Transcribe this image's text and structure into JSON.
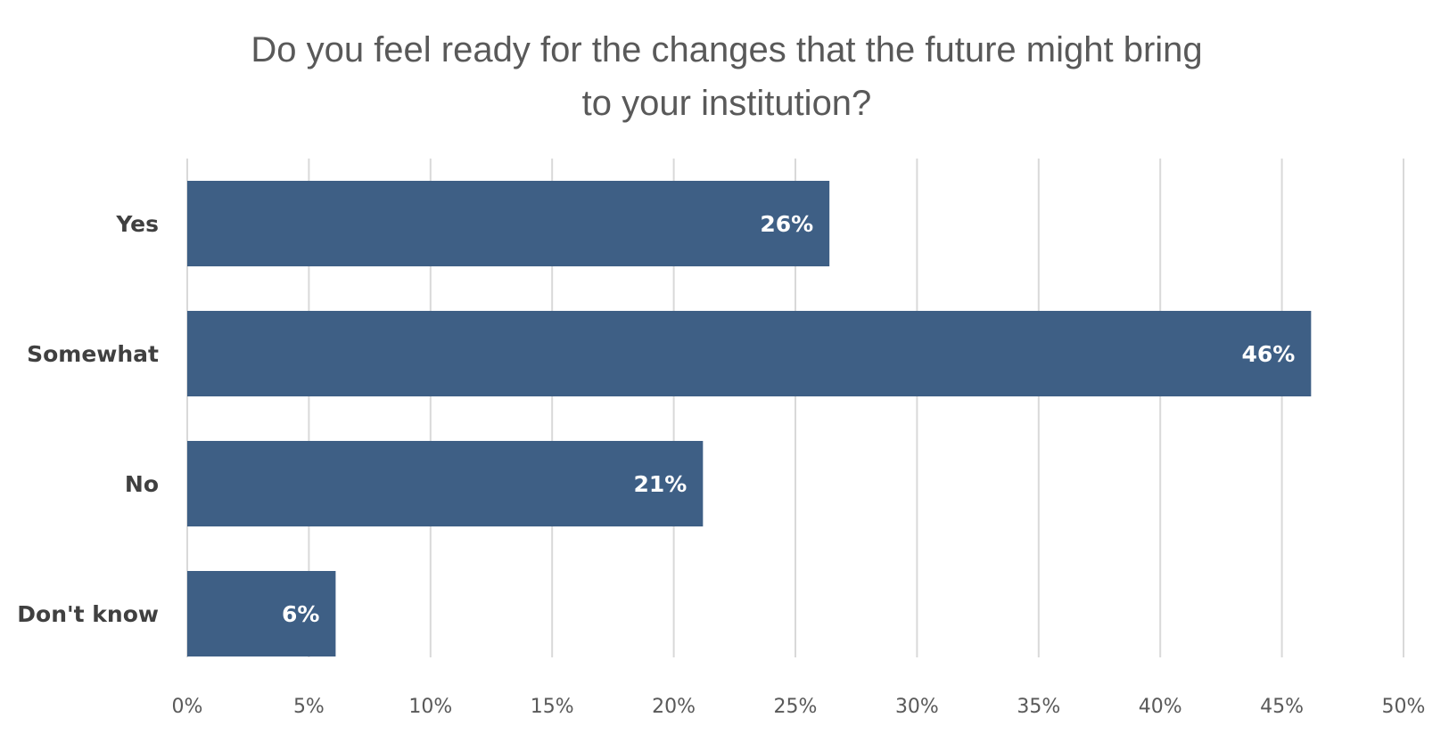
{
  "chart_data": {
    "type": "bar",
    "orientation": "horizontal",
    "title": "Do you feel ready for the changes that the future might bring to your institution?",
    "title_lines": [
      "Do you feel ready for the changes that the future might bring",
      "to your institution?"
    ],
    "categories": [
      "Yes",
      "Somewhat",
      "No",
      "Don't know"
    ],
    "values": [
      26.4,
      46.2,
      21.2,
      6.1
    ],
    "data_labels": [
      "26%",
      "46%",
      "21%",
      "6%"
    ],
    "xlim": [
      0,
      50
    ],
    "x_ticks": [
      0,
      5,
      10,
      15,
      20,
      25,
      30,
      35,
      40,
      45,
      50
    ],
    "x_tick_labels": [
      "0%",
      "5%",
      "10%",
      "15%",
      "20%",
      "25%",
      "30%",
      "35%",
      "40%",
      "45%",
      "50%"
    ],
    "xlabel": "",
    "ylabel": "",
    "grid": true,
    "legend": false,
    "bar_color": "#3e5f85",
    "grid_color": "#d9d9d9"
  }
}
